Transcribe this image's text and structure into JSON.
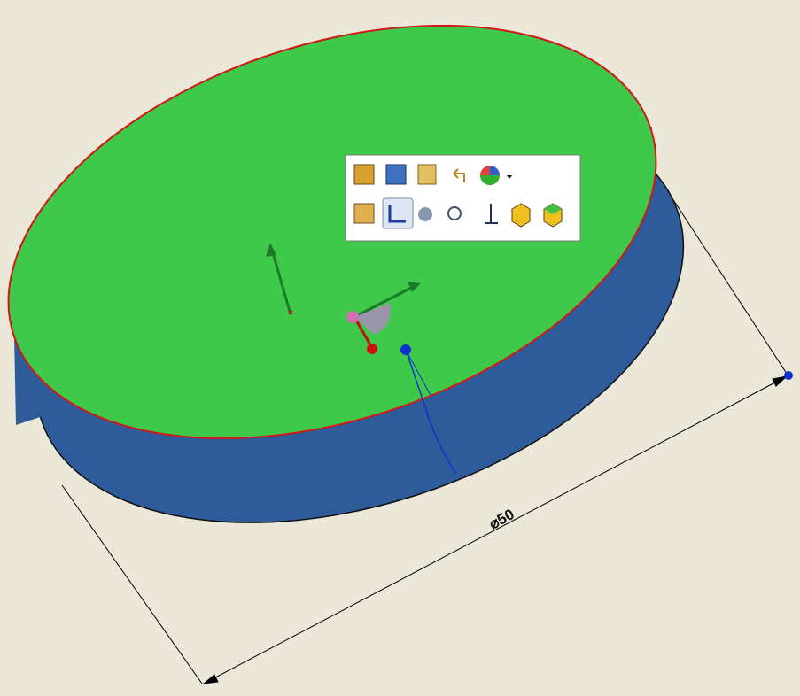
{
  "dimension": {
    "label": "⌀50"
  }
}
